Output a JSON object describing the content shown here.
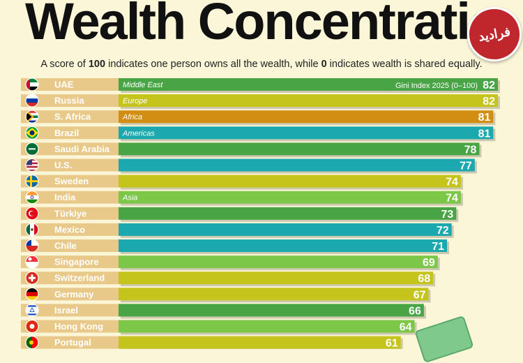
{
  "header": {
    "title": "Wealth Concentration",
    "subtitle_parts": [
      "A score of ",
      "100",
      " indicates one person owns all the wealth, while ",
      "0",
      " indicates wealth is shared equally."
    ],
    "logo_text": "فرادید"
  },
  "colors": {
    "Middle East": "#48a444",
    "Europe": "#c4c41c",
    "Africa": "#d18e12",
    "Americas": "#1ba8ae",
    "Asia": "#7cc648",
    "label_bg": "#e9c98a",
    "label_text": "#ffffff"
  },
  "chart_data": {
    "type": "bar",
    "orientation": "horizontal",
    "value_header": "Gini Index 2025 (0–100)",
    "xlim": [
      0,
      82
    ],
    "region_labels_shown": [
      "Middle East",
      "Europe",
      "Africa",
      "Americas",
      "Asia"
    ],
    "rows": [
      {
        "country": "UAE",
        "region": "Middle East",
        "value": 82,
        "flag": "uae-flag"
      },
      {
        "country": "Russia",
        "region": "Europe",
        "value": 82,
        "flag": "russia-flag"
      },
      {
        "country": "S. Africa",
        "region": "Africa",
        "value": 81,
        "flag": "south-africa-flag"
      },
      {
        "country": "Brazil",
        "region": "Americas",
        "value": 81,
        "flag": "brazil-flag"
      },
      {
        "country": "Saudi Arabia",
        "region": "Middle East",
        "value": 78,
        "flag": "saudi-arabia-flag"
      },
      {
        "country": "U.S.",
        "region": "Americas",
        "value": 77,
        "flag": "us-flag"
      },
      {
        "country": "Sweden",
        "region": "Europe",
        "value": 74,
        "flag": "sweden-flag"
      },
      {
        "country": "India",
        "region": "Asia",
        "value": 74,
        "flag": "india-flag"
      },
      {
        "country": "Türkiye",
        "region": "Middle East",
        "value": 73,
        "flag": "turkiye-flag"
      },
      {
        "country": "Mexico",
        "region": "Americas",
        "value": 72,
        "flag": "mexico-flag"
      },
      {
        "country": "Chile",
        "region": "Americas",
        "value": 71,
        "flag": "chile-flag"
      },
      {
        "country": "Singapore",
        "region": "Asia",
        "value": 69,
        "flag": "singapore-flag"
      },
      {
        "country": "Switzerland",
        "region": "Europe",
        "value": 68,
        "flag": "switzerland-flag"
      },
      {
        "country": "Germany",
        "region": "Europe",
        "value": 67,
        "flag": "germany-flag"
      },
      {
        "country": "Israel",
        "region": "Middle East",
        "value": 66,
        "flag": "israel-flag"
      },
      {
        "country": "Hong Kong",
        "region": "Asia",
        "value": 64,
        "flag": "hong-kong-flag"
      },
      {
        "country": "Portugal",
        "region": "Europe",
        "value": 61,
        "flag": "portugal-flag"
      }
    ]
  }
}
